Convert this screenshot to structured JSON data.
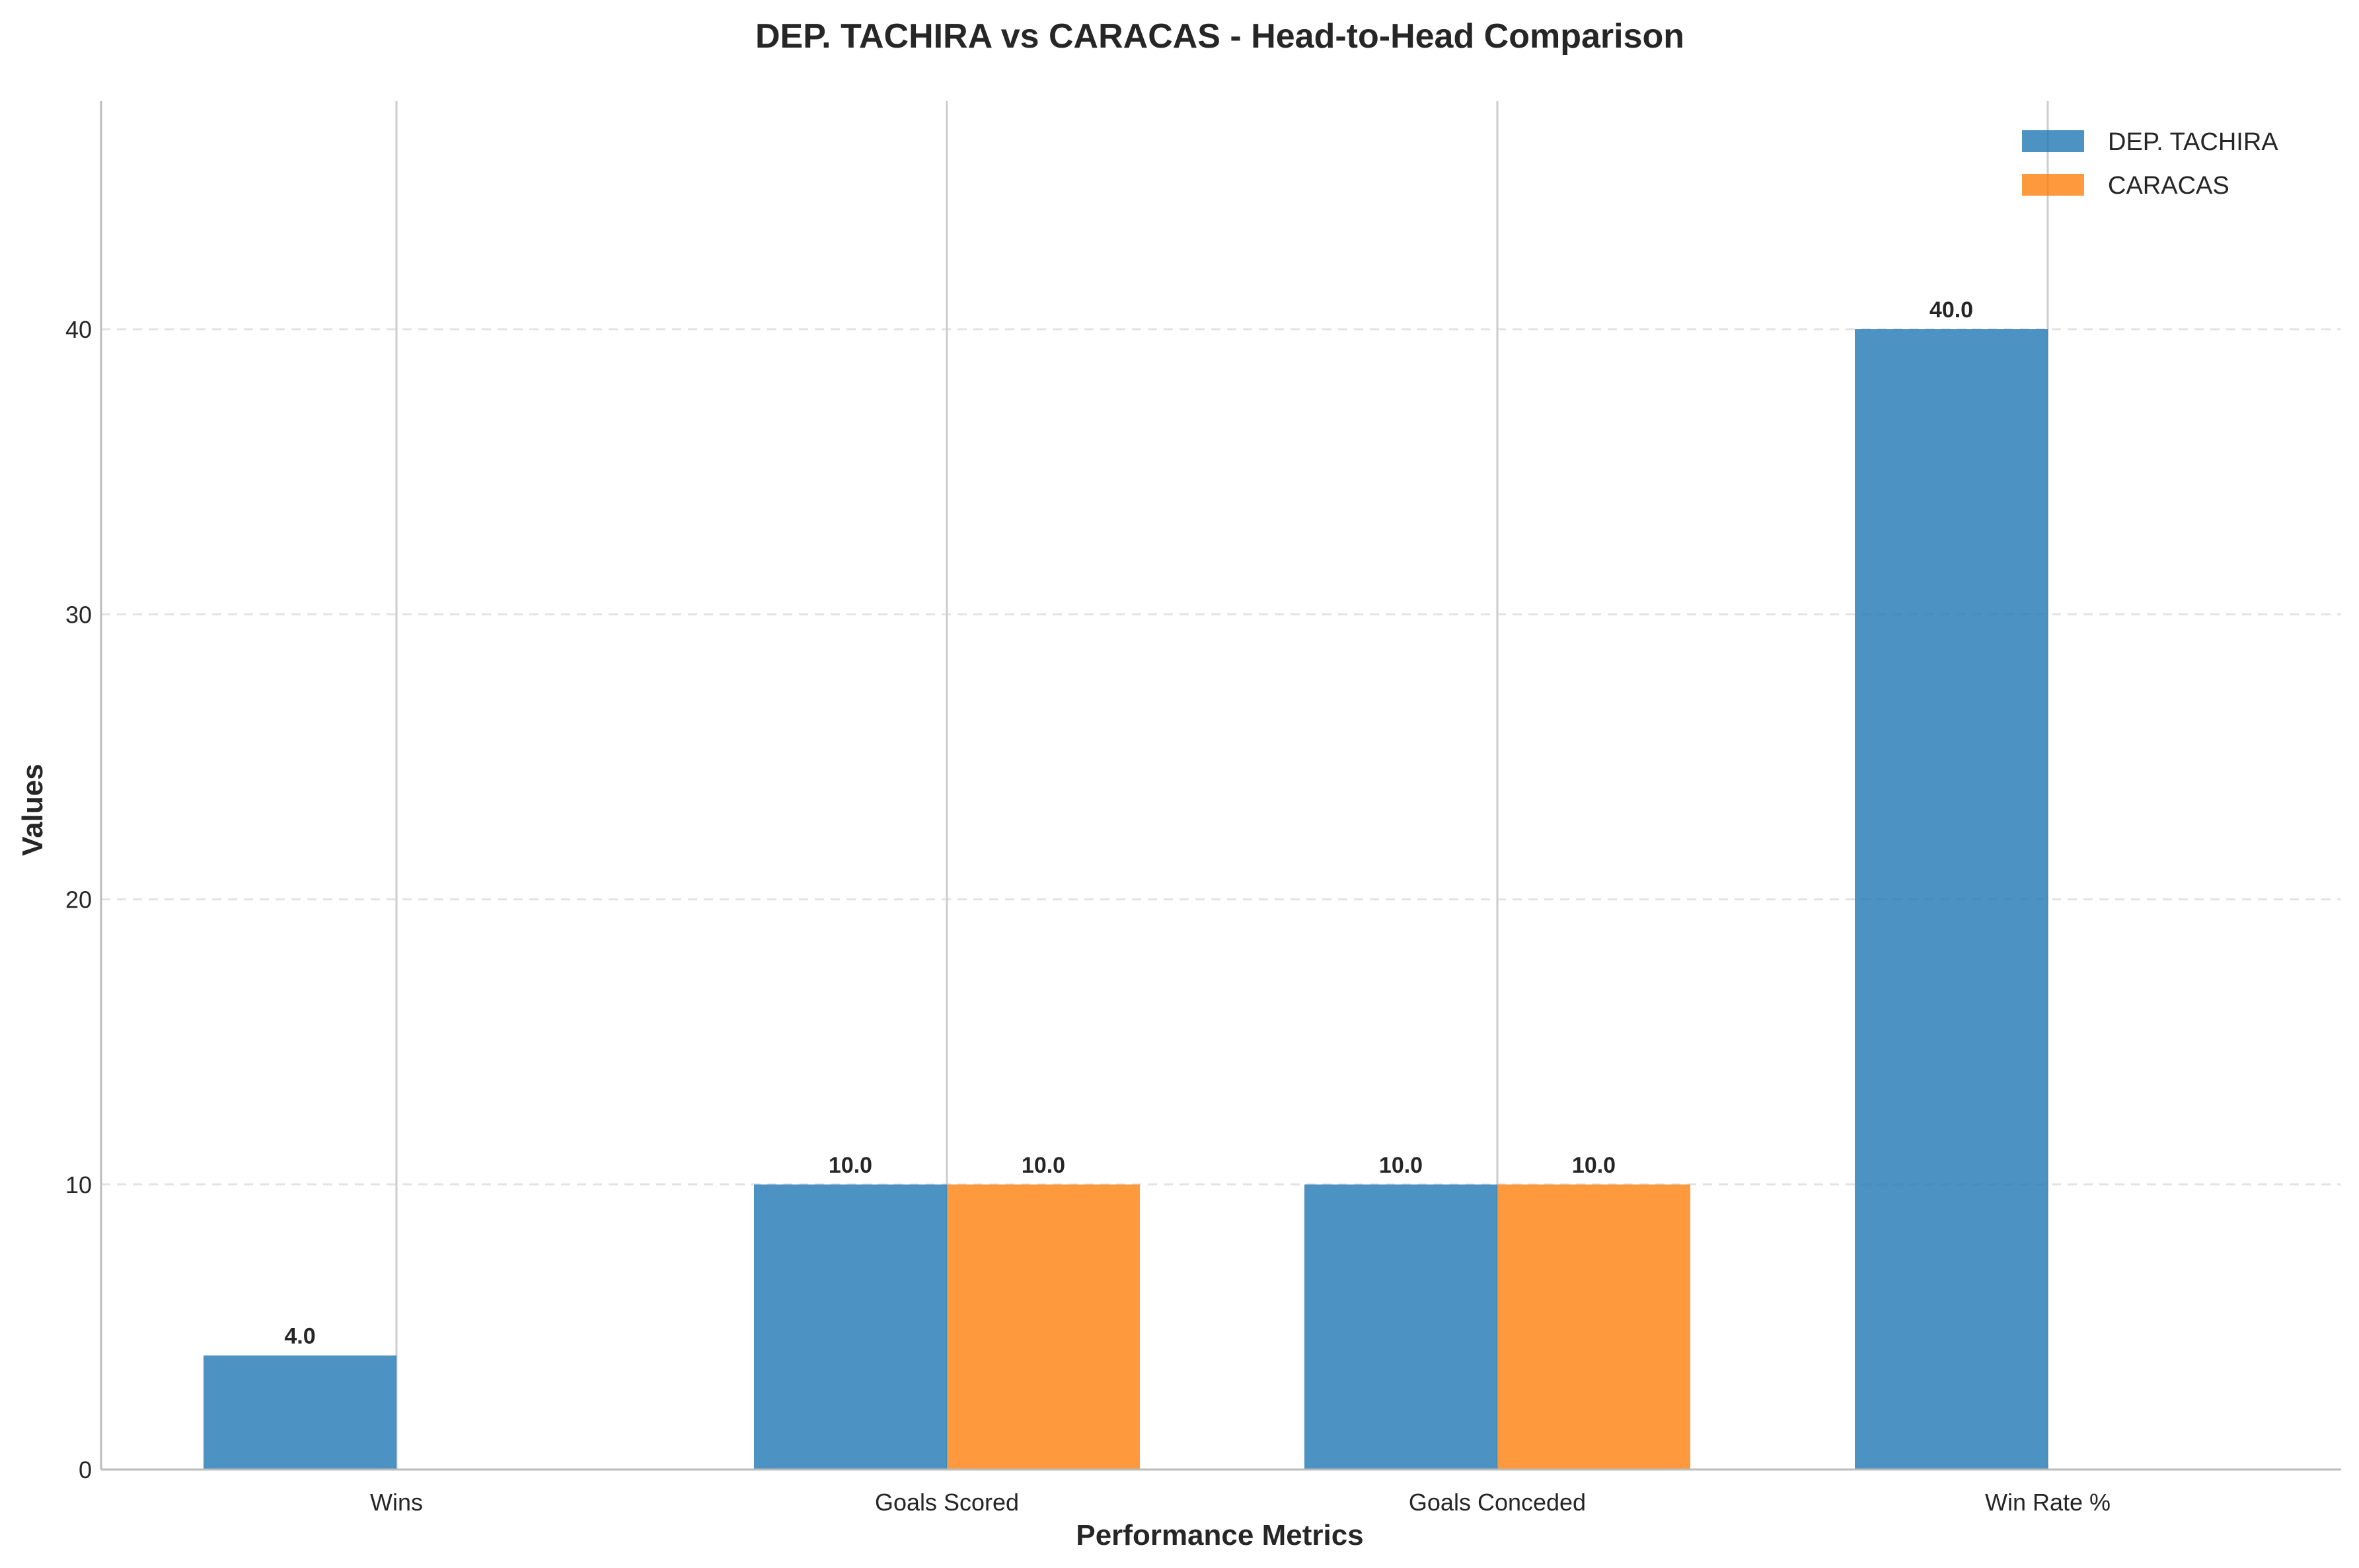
{
  "chart_data": {
    "type": "bar",
    "title": "DEP. TACHIRA vs CARACAS - Head-to-Head Comparison",
    "xlabel": "Performance Metrics",
    "ylabel": "Values",
    "categories": [
      "Wins",
      "Goals Scored",
      "Goals Conceded",
      "Win Rate %"
    ],
    "series": [
      {
        "name": "DEP. TACHIRA",
        "color": "#1f77b4",
        "values": [
          4.0,
          10.0,
          10.0,
          40.0
        ],
        "labels": [
          "4.0",
          "10.0",
          "10.0",
          "40.0"
        ]
      },
      {
        "name": "CARACAS",
        "color": "#ff7f0e",
        "values": [
          0,
          10.0,
          10.0,
          0
        ],
        "labels": [
          "",
          "10.0",
          "10.0",
          ""
        ]
      }
    ],
    "ylim": [
      0,
      48
    ],
    "yticks": [
      0,
      10,
      20,
      30,
      40
    ],
    "ytick_labels": [
      "0",
      "10",
      "20",
      "30",
      "40"
    ],
    "grid": "y-dashed",
    "legend_position": "top-right"
  }
}
